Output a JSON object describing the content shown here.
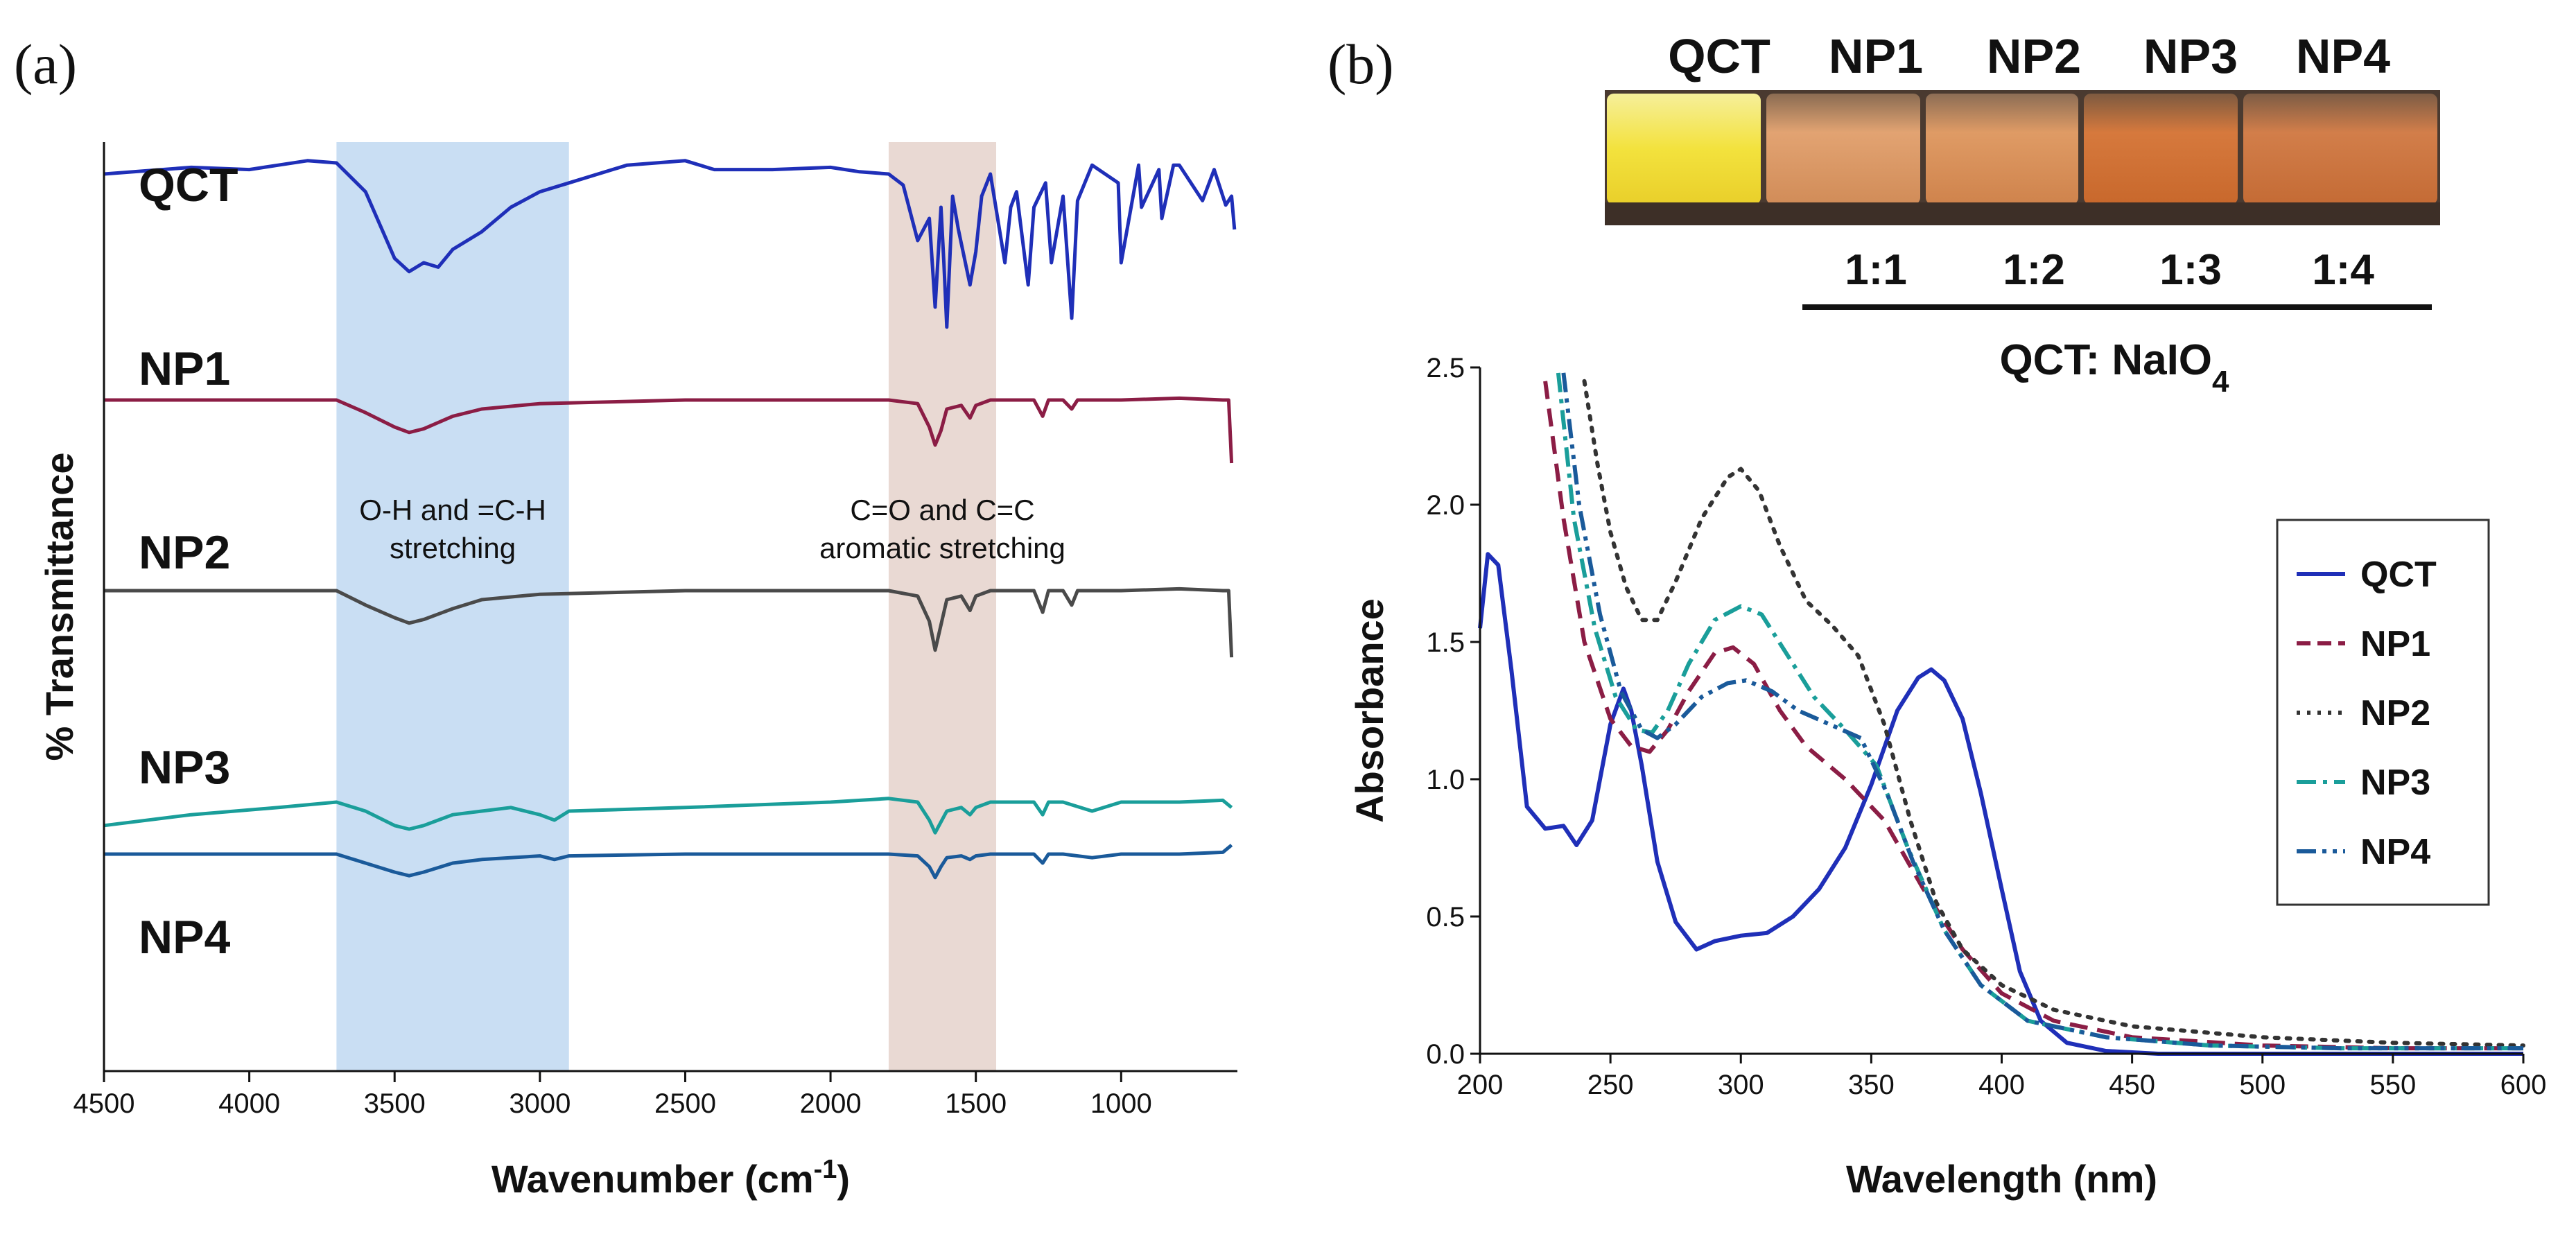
{
  "panel_a": {
    "label": "(a)",
    "band1_text": [
      "O-H and =C-H",
      "stretching"
    ],
    "band2_text": [
      "C=O and C=C",
      "aromatic stretching"
    ],
    "band1_color": "#c9def3",
    "band2_color": "#e9d9d3"
  },
  "panel_b": {
    "label": "(b)",
    "vials": [
      "QCT",
      "NP1",
      "NP2",
      "NP3",
      "NP4"
    ],
    "ratios": [
      "1:1",
      "1:2",
      "1:3",
      "1:4"
    ],
    "ratio_caption": "QCT: NaIO",
    "ratio_caption_sub": "4"
  },
  "chart_data": [
    {
      "type": "line",
      "panel": "a",
      "xlabel": "Wavenumber (cm",
      "xlabel_sup": "-1",
      "xlabel_end": ")",
      "ylabel": "% Transmittance",
      "xlim": [
        4500,
        600
      ],
      "xticks": [
        4500,
        4000,
        3500,
        3000,
        2500,
        2000,
        1500,
        1000
      ],
      "highlight_bands": [
        [
          3700,
          2900
        ],
        [
          1800,
          1430
        ]
      ],
      "series": [
        {
          "name": "QCT",
          "color": "#1f2fb8",
          "offset": 0.0,
          "x": [
            4500,
            4200,
            4000,
            3900,
            3800,
            3700,
            3600,
            3500,
            3450,
            3400,
            3350,
            3300,
            3200,
            3100,
            3000,
            2900,
            2700,
            2500,
            2400,
            2200,
            2000,
            1900,
            1800,
            1750,
            1700,
            1660,
            1640,
            1620,
            1610,
            1600,
            1580,
            1560,
            1520,
            1500,
            1480,
            1450,
            1400,
            1380,
            1360,
            1320,
            1300,
            1260,
            1240,
            1200,
            1170,
            1150,
            1100,
            1010,
            1000,
            940,
            930,
            870,
            860,
            820,
            800,
            720,
            680,
            640,
            620,
            610
          ],
          "y": [
            0.7,
            0.73,
            0.72,
            0.74,
            0.76,
            0.75,
            0.62,
            0.32,
            0.26,
            0.3,
            0.28,
            0.36,
            0.44,
            0.55,
            0.62,
            0.66,
            0.74,
            0.76,
            0.72,
            0.72,
            0.73,
            0.71,
            0.7,
            0.65,
            0.4,
            0.5,
            0.1,
            0.55,
            0.3,
            0.01,
            0.6,
            0.45,
            0.2,
            0.35,
            0.6,
            0.7,
            0.3,
            0.55,
            0.62,
            0.2,
            0.55,
            0.66,
            0.3,
            0.6,
            0.05,
            0.58,
            0.74,
            0.66,
            0.3,
            0.74,
            0.55,
            0.72,
            0.5,
            0.74,
            0.74,
            0.58,
            0.72,
            0.56,
            0.6,
            0.45
          ]
        },
        {
          "name": "NP1",
          "color": "#8b1d45",
          "offset": 0.0,
          "x": [
            4500,
            3800,
            3700,
            3600,
            3500,
            3450,
            3400,
            3300,
            3200,
            3000,
            2500,
            2000,
            1800,
            1700,
            1660,
            1640,
            1620,
            1600,
            1550,
            1520,
            1500,
            1450,
            1300,
            1270,
            1250,
            1200,
            1170,
            1150,
            1100,
            1000,
            800,
            650,
            630,
            620
          ],
          "y": [
            0.55,
            0.55,
            0.55,
            0.48,
            0.4,
            0.37,
            0.39,
            0.46,
            0.5,
            0.53,
            0.55,
            0.55,
            0.55,
            0.53,
            0.4,
            0.3,
            0.38,
            0.5,
            0.52,
            0.45,
            0.52,
            0.55,
            0.55,
            0.46,
            0.55,
            0.55,
            0.5,
            0.55,
            0.55,
            0.55,
            0.56,
            0.55,
            0.55,
            0.2
          ]
        },
        {
          "name": "NP2",
          "color": "#4a4a4a",
          "offset": 0.0,
          "x": [
            4500,
            3800,
            3700,
            3600,
            3500,
            3450,
            3400,
            3300,
            3200,
            3000,
            2500,
            2000,
            1800,
            1700,
            1660,
            1640,
            1620,
            1600,
            1550,
            1520,
            1500,
            1450,
            1300,
            1270,
            1250,
            1200,
            1170,
            1150,
            1100,
            1000,
            800,
            650,
            630,
            620
          ],
          "y": [
            0.55,
            0.55,
            0.55,
            0.47,
            0.4,
            0.37,
            0.39,
            0.45,
            0.5,
            0.53,
            0.55,
            0.55,
            0.55,
            0.52,
            0.38,
            0.22,
            0.36,
            0.5,
            0.52,
            0.44,
            0.52,
            0.55,
            0.55,
            0.43,
            0.55,
            0.55,
            0.47,
            0.55,
            0.55,
            0.55,
            0.56,
            0.55,
            0.55,
            0.18
          ]
        },
        {
          "name": "NP3",
          "color": "#1a9e9a",
          "offset": 0.0,
          "x": [
            4500,
            4200,
            3900,
            3700,
            3600,
            3500,
            3450,
            3400,
            3300,
            3200,
            3100,
            3000,
            2950,
            2900,
            2500,
            2000,
            1800,
            1700,
            1660,
            1640,
            1620,
            1600,
            1550,
            1520,
            1500,
            1450,
            1300,
            1270,
            1250,
            1200,
            1100,
            1000,
            800,
            650,
            620
          ],
          "y": [
            0.42,
            0.48,
            0.52,
            0.55,
            0.5,
            0.42,
            0.4,
            0.42,
            0.48,
            0.5,
            0.52,
            0.48,
            0.45,
            0.5,
            0.52,
            0.55,
            0.57,
            0.55,
            0.45,
            0.38,
            0.44,
            0.5,
            0.52,
            0.48,
            0.52,
            0.55,
            0.55,
            0.48,
            0.55,
            0.55,
            0.5,
            0.55,
            0.55,
            0.56,
            0.52
          ]
        },
        {
          "name": "NP4",
          "color": "#1a5a9a",
          "offset": 0.0,
          "x": [
            4500,
            3800,
            3700,
            3600,
            3500,
            3450,
            3400,
            3300,
            3200,
            3000,
            2950,
            2900,
            2500,
            2000,
            1800,
            1700,
            1660,
            1640,
            1620,
            1600,
            1550,
            1520,
            1500,
            1450,
            1300,
            1270,
            1250,
            1200,
            1100,
            1000,
            800,
            650,
            620
          ],
          "y": [
            0.55,
            0.55,
            0.55,
            0.5,
            0.45,
            0.43,
            0.45,
            0.5,
            0.52,
            0.54,
            0.52,
            0.54,
            0.55,
            0.55,
            0.55,
            0.54,
            0.48,
            0.42,
            0.48,
            0.53,
            0.54,
            0.52,
            0.54,
            0.55,
            0.55,
            0.5,
            0.55,
            0.55,
            0.53,
            0.55,
            0.55,
            0.56,
            0.6
          ]
        }
      ]
    },
    {
      "type": "line",
      "panel": "b",
      "xlabel": "Wavelength (nm)",
      "ylabel": "Absorbance",
      "xlim": [
        200,
        600
      ],
      "ylim": [
        0.0,
        2.5
      ],
      "xticks": [
        200,
        250,
        300,
        350,
        400,
        450,
        500,
        550,
        600
      ],
      "yticks": [
        0.0,
        0.5,
        1.0,
        1.5,
        2.0,
        2.5
      ],
      "legend": "right",
      "series": [
        {
          "name": "QCT",
          "color": "#1f2fb8",
          "dash": "solid",
          "x": [
            200,
            203,
            207,
            212,
            218,
            225,
            232,
            237,
            243,
            250,
            255,
            258,
            262,
            268,
            275,
            283,
            290,
            300,
            310,
            320,
            330,
            340,
            350,
            360,
            368,
            373,
            378,
            385,
            392,
            400,
            407,
            415,
            425,
            440,
            460,
            500,
            550,
            600
          ],
          "y": [
            1.55,
            1.82,
            1.78,
            1.4,
            0.9,
            0.82,
            0.83,
            0.76,
            0.85,
            1.2,
            1.33,
            1.25,
            1.05,
            0.7,
            0.48,
            0.38,
            0.41,
            0.43,
            0.44,
            0.5,
            0.6,
            0.75,
            0.98,
            1.25,
            1.37,
            1.4,
            1.36,
            1.22,
            0.95,
            0.6,
            0.3,
            0.12,
            0.04,
            0.01,
            0.0,
            0.0,
            0.0,
            0.0
          ]
        },
        {
          "name": "NP1",
          "color": "#8b1d45",
          "dash": "dash",
          "x": [
            225,
            232,
            240,
            250,
            258,
            265,
            272,
            280,
            290,
            297,
            305,
            315,
            325,
            340,
            355,
            370,
            385,
            400,
            420,
            450,
            500,
            550,
            600
          ],
          "y": [
            2.45,
            1.95,
            1.5,
            1.22,
            1.12,
            1.1,
            1.18,
            1.32,
            1.46,
            1.48,
            1.42,
            1.25,
            1.12,
            1.0,
            0.85,
            0.6,
            0.38,
            0.22,
            0.12,
            0.06,
            0.03,
            0.02,
            0.02
          ]
        },
        {
          "name": "NP2",
          "color": "#333333",
          "dash": "dot",
          "x": [
            240,
            245,
            250,
            256,
            262,
            268,
            275,
            285,
            295,
            300,
            307,
            315,
            325,
            335,
            345,
            355,
            365,
            375,
            385,
            400,
            420,
            450,
            500,
            550,
            600
          ],
          "y": [
            2.45,
            2.15,
            1.9,
            1.7,
            1.58,
            1.58,
            1.72,
            1.95,
            2.1,
            2.13,
            2.05,
            1.85,
            1.65,
            1.56,
            1.45,
            1.2,
            0.85,
            0.55,
            0.38,
            0.25,
            0.16,
            0.1,
            0.06,
            0.04,
            0.03
          ]
        },
        {
          "name": "NP3",
          "color": "#1a9e9a",
          "dash": "dashdot",
          "x": [
            230,
            236,
            244,
            252,
            260,
            266,
            272,
            280,
            290,
            300,
            308,
            318,
            328,
            340,
            352,
            364,
            378,
            392,
            410,
            440,
            480,
            530,
            600
          ],
          "y": [
            2.48,
            1.95,
            1.55,
            1.3,
            1.18,
            1.17,
            1.25,
            1.42,
            1.58,
            1.63,
            1.6,
            1.45,
            1.3,
            1.18,
            1.05,
            0.75,
            0.45,
            0.25,
            0.12,
            0.06,
            0.03,
            0.02,
            0.02
          ]
        },
        {
          "name": "NP4",
          "color": "#1a5a9a",
          "dash": "dashdotdot",
          "x": [
            232,
            238,
            246,
            254,
            262,
            268,
            275,
            285,
            295,
            302,
            312,
            322,
            334,
            346,
            356,
            366,
            378,
            392,
            410,
            440,
            480,
            530,
            600
          ],
          "y": [
            2.48,
            2.0,
            1.6,
            1.32,
            1.18,
            1.15,
            1.2,
            1.3,
            1.35,
            1.36,
            1.32,
            1.25,
            1.2,
            1.15,
            0.95,
            0.7,
            0.45,
            0.25,
            0.12,
            0.06,
            0.03,
            0.02,
            0.02
          ]
        }
      ]
    }
  ]
}
